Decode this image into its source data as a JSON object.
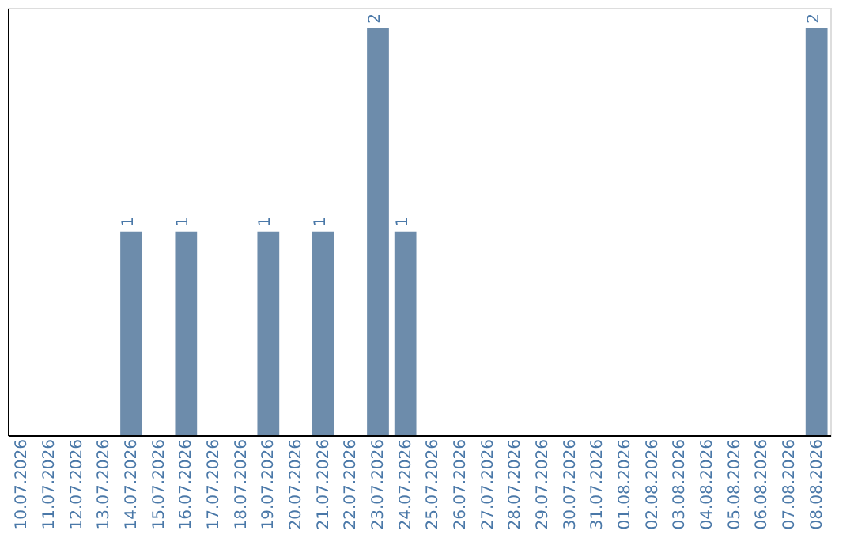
{
  "chart_data": {
    "type": "bar",
    "categories": [
      "10.07.2026",
      "11.07.2026",
      "12.07.2026",
      "13.07.2026",
      "14.07.2026",
      "15.07.2026",
      "16.07.2026",
      "17.07.2026",
      "18.07.2026",
      "19.07.2026",
      "20.07.2026",
      "21.07.2026",
      "22.07.2026",
      "23.07.2026",
      "24.07.2026",
      "25.07.2026",
      "26.07.2026",
      "27.07.2026",
      "28.07.2026",
      "29.07.2026",
      "30.07.2026",
      "31.07.2026",
      "01.08.2026",
      "02.08.2026",
      "03.08.2026",
      "04.08.2026",
      "05.08.2026",
      "06.08.2026",
      "07.08.2026",
      "08.08.2026"
    ],
    "values": [
      0,
      0,
      0,
      0,
      1,
      0,
      1,
      0,
      0,
      1,
      0,
      1,
      0,
      2,
      1,
      0,
      0,
      0,
      0,
      0,
      0,
      0,
      0,
      0,
      0,
      0,
      0,
      0,
      0,
      2
    ],
    "color": "#6d8cab",
    "ylim": [
      0,
      2.1
    ],
    "value_labels": [
      null,
      null,
      null,
      null,
      "1",
      null,
      "1",
      null,
      null,
      "1",
      null,
      "1",
      null,
      "2",
      "1",
      null,
      null,
      null,
      null,
      null,
      null,
      null,
      null,
      null,
      null,
      null,
      null,
      null,
      null,
      "2"
    ],
    "tick_labels": "x"
  }
}
